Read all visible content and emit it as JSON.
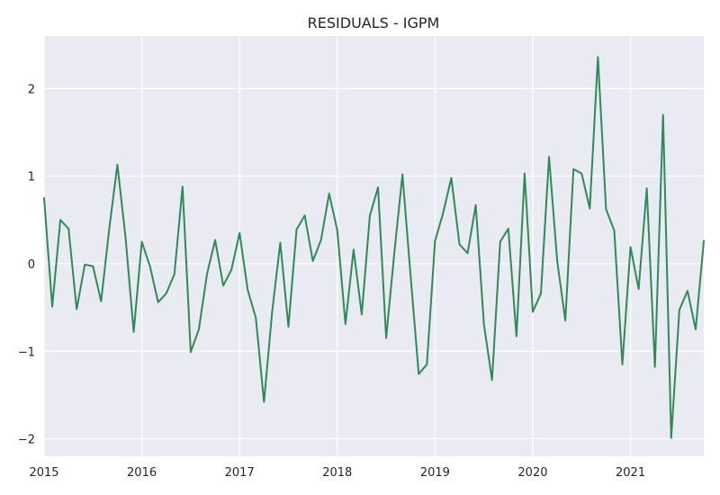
{
  "chart_data": {
    "type": "line",
    "title": "RESIDUALS - IGPM",
    "xlabel": "",
    "ylabel": "",
    "x_start": "2015-01",
    "x_frequency": "monthly",
    "xlim": [
      "2015-01",
      "2021-10"
    ],
    "ylim": [
      -2.2,
      2.6
    ],
    "x_ticks": [
      {
        "date": "2015-01",
        "label": "2015"
      },
      {
        "date": "2016-01",
        "label": "2016"
      },
      {
        "date": "2017-01",
        "label": "2017"
      },
      {
        "date": "2018-01",
        "label": "2018"
      },
      {
        "date": "2019-01",
        "label": "2019"
      },
      {
        "date": "2020-01",
        "label": "2020"
      },
      {
        "date": "2021-01",
        "label": "2021"
      }
    ],
    "y_ticks": [
      {
        "value": -2,
        "label": "−2"
      },
      {
        "value": -1,
        "label": "−1"
      },
      {
        "value": 0,
        "label": "0"
      },
      {
        "value": 1,
        "label": "1"
      },
      {
        "value": 2,
        "label": "2"
      }
    ],
    "grid": true,
    "series": [
      {
        "color": "#2e8b57",
        "values": [
          0.75,
          -0.49,
          0.5,
          0.4,
          -0.52,
          -0.01,
          -0.03,
          -0.43,
          0.4,
          1.13,
          0.3,
          -0.78,
          0.25,
          -0.03,
          -0.44,
          -0.34,
          -0.12,
          0.88,
          -1.01,
          -0.75,
          -0.12,
          0.27,
          -0.25,
          -0.07,
          0.35,
          -0.3,
          -0.62,
          -1.58,
          -0.55,
          0.24,
          -0.72,
          0.39,
          0.55,
          0.03,
          0.27,
          0.8,
          0.38,
          -0.69,
          0.16,
          -0.58,
          0.55,
          0.87,
          -0.85,
          0.12,
          1.02,
          -0.14,
          -1.26,
          -1.15,
          0.26,
          0.58,
          0.98,
          0.22,
          0.12,
          0.67,
          -0.69,
          -1.33,
          0.25,
          0.4,
          -0.83,
          1.03,
          -0.55,
          -0.34,
          1.22,
          0.03,
          -0.65,
          1.08,
          1.03,
          0.63,
          2.36,
          0.62,
          0.38,
          -1.15,
          0.19,
          -0.29,
          0.86,
          -1.18,
          1.7,
          -1.99,
          -0.53,
          -0.31,
          -0.75,
          0.26
        ]
      }
    ]
  },
  "colors": {
    "plot_background": "#eaeaf2",
    "grid": "#ffffff",
    "line": "#2e8b57"
  }
}
